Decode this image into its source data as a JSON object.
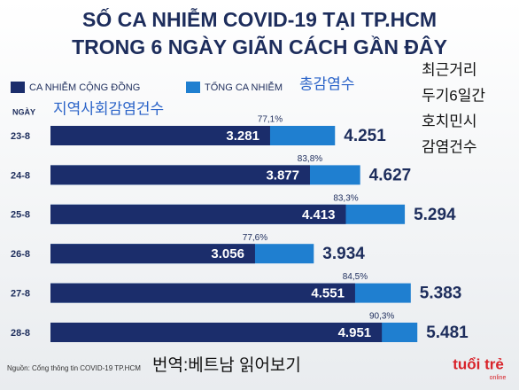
{
  "chart_data": {
    "type": "bar",
    "orientation": "horizontal",
    "title": [
      "SỐ CA NHIỄM COVID-19 TẠI TP.HCM",
      "TRONG 6 NGÀY GIÃN CÁCH GẦN ĐÂY"
    ],
    "category_header": "NGÀY",
    "categories": [
      "23-8",
      "24-8",
      "25-8",
      "26-8",
      "27-8",
      "28-8"
    ],
    "series": [
      {
        "name": "CA NHIỄM CỘNG ĐỒNG",
        "color": "#1b2d6b",
        "values": [
          3281,
          3877,
          4413,
          3056,
          4551,
          4951
        ],
        "value_labels": [
          "3.281",
          "3.877",
          "4.413",
          "3.056",
          "4.551",
          "4.951"
        ]
      },
      {
        "name": "TỔNG CA NHIỄM",
        "color": "#1f7fd0",
        "values": [
          4251,
          4627,
          5294,
          3934,
          5383,
          5481
        ],
        "value_labels": [
          "4.251",
          "4.627",
          "5.294",
          "3.934",
          "5.383",
          "5.481"
        ]
      }
    ],
    "shares": {
      "values": [
        77.1,
        83.8,
        83.3,
        77.6,
        84.5,
        90.3
      ],
      "value_labels": [
        "77,1%",
        "83,8%",
        "83,3%",
        "77,6%",
        "84,5%",
        "90,3%"
      ]
    },
    "xlim": [
      0,
      7000
    ],
    "source": "Nguồn: Cổng thông tin COVID-19 TP.HCM",
    "logo": [
      "tuổi trẻ",
      "online"
    ],
    "annotations": [
      "총감염수",
      "지역사회감염건수",
      "최근거리",
      "두기6일간",
      "호치민시",
      "감염건수",
      "번역:베트남 읽어보기"
    ]
  }
}
